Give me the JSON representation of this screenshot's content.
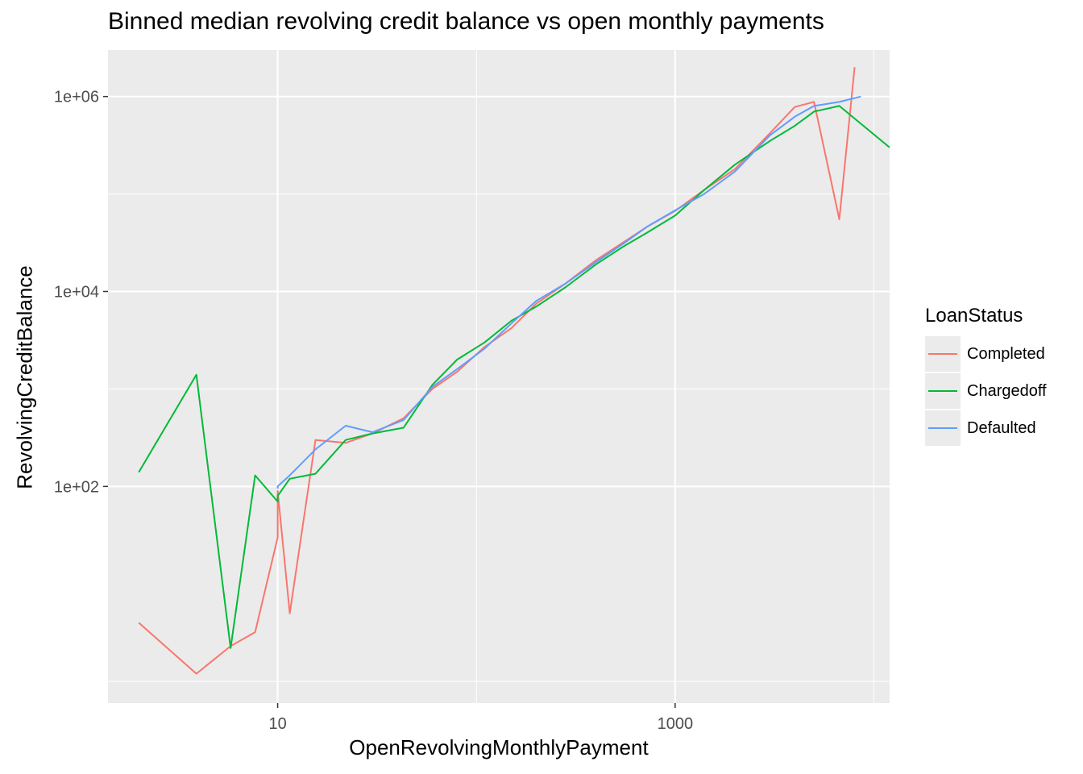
{
  "chart_data": {
    "type": "line",
    "title": "Binned median revolving credit balance vs open monthly payments",
    "xlabel": "OpenRevolvingMonthlyPayment",
    "ylabel": "RevolvingCreditBalance",
    "x_scale": "log10",
    "y_scale": "log10",
    "xlim": [
      1.4,
      12000
    ],
    "ylim": [
      0.6,
      3000000
    ],
    "x_ticks": [
      {
        "value": 10,
        "label": "10"
      },
      {
        "value": 1000,
        "label": "1000"
      }
    ],
    "x_minor_ticks": [
      1,
      100,
      10000
    ],
    "y_ticks": [
      {
        "value": 100,
        "label": "1e+02"
      },
      {
        "value": 10000,
        "label": "1e+04"
      },
      {
        "value": 1000000,
        "label": "1e+06"
      }
    ],
    "y_minor_ticks": [
      1,
      1000,
      100000
    ],
    "grid": true,
    "legend": {
      "title": "LoanStatus",
      "position": "right"
    },
    "series": [
      {
        "name": "Completed",
        "color": "#F8766D",
        "x": [
          2.0,
          3.9,
          5.8,
          7.7,
          10,
          10,
          11.5,
          15.5,
          22,
          30,
          43,
          60,
          80,
          110,
          150,
          200,
          280,
          400,
          550,
          720,
          1000,
          1400,
          2000,
          3000,
          4000,
          5000,
          6700,
          8000
        ],
        "y": [
          4,
          1.2,
          2.3,
          3.2,
          30,
          90,
          5,
          300,
          280,
          350,
          500,
          1000,
          1500,
          2700,
          4200,
          7500,
          12000,
          21000,
          32000,
          46000,
          67000,
          110000,
          180000,
          420000,
          780000,
          880000,
          55000,
          2000000
        ]
      },
      {
        "name": "Chargedoff",
        "color": "#00BA38",
        "x": [
          2.0,
          3.9,
          5.8,
          7.7,
          10,
          10,
          11.5,
          15.5,
          22,
          30,
          43,
          60,
          80,
          110,
          150,
          200,
          280,
          400,
          550,
          720,
          1000,
          1400,
          2000,
          3000,
          4000,
          5000,
          6700,
          12000
        ],
        "y": [
          140,
          1400,
          2.2,
          130,
          70,
          80,
          120,
          135,
          300,
          350,
          400,
          1100,
          2000,
          3000,
          5000,
          7000,
          11000,
          19000,
          29000,
          40000,
          60000,
          110000,
          200000,
          350000,
          500000,
          700000,
          800000,
          300000
        ]
      },
      {
        "name": "Defaulted",
        "color": "#619CFF",
        "x": [
          10,
          10,
          11.5,
          15.5,
          22,
          30,
          43,
          60,
          80,
          110,
          150,
          200,
          280,
          400,
          550,
          720,
          1000,
          1400,
          2000,
          3000,
          4000,
          5000,
          6700,
          8600
        ],
        "y": [
          95,
          100,
          130,
          240,
          420,
          360,
          480,
          1050,
          1600,
          2600,
          4700,
          8000,
          12000,
          20000,
          31000,
          46000,
          68000,
          100000,
          170000,
          400000,
          620000,
          800000,
          880000,
          1000000
        ]
      }
    ]
  }
}
